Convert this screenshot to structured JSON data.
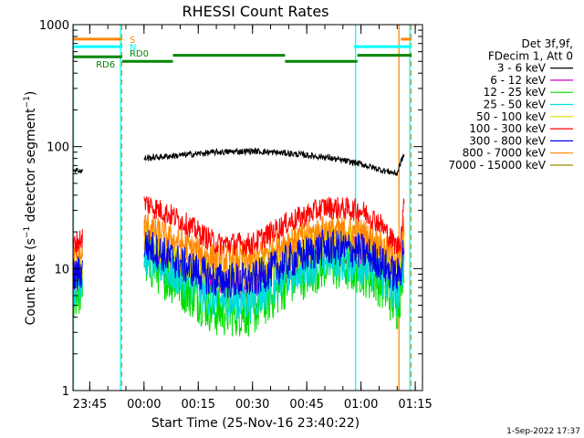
{
  "chart_data": {
    "type": "line",
    "title": "RHESSI Count Rates",
    "xlabel": "Start Time (25-Nov-16 23:40:22)",
    "ylabel": "Count Rate (s⁻¹ detector segment⁻¹)",
    "ylabel_parts": {
      "main": "Count Rate (s",
      "exp1": "−1",
      "mid": " detector segment",
      "exp2": "−1",
      "end": ")"
    },
    "date_stamp": "1-Sep-2022 17:37",
    "y_scale": "log",
    "ylim": [
      1,
      1000
    ],
    "xlim": [
      "23:40:22",
      "01:17:00"
    ],
    "x_ticks": [
      "23:45",
      "00:00",
      "00:15",
      "00:30",
      "00:45",
      "01:00",
      "01:15"
    ],
    "y_ticks": [
      "1",
      "10",
      "100",
      "1000"
    ],
    "legend_header": [
      "Det 3f,9f,",
      "FDecim 1, Att 0"
    ],
    "legend_position": "right",
    "series": [
      {
        "name": "3 - 6 keV",
        "color": "#000000",
        "x": [
          "23:40",
          "23:43",
          "23:50",
          "23:54",
          "00:00",
          "00:10",
          "00:20",
          "00:30",
          "00:40",
          "00:50",
          "01:00",
          "01:05",
          "01:10",
          "01:11",
          "01:12"
        ],
        "values": [
          65,
          63,
          null,
          null,
          80,
          85,
          90,
          92,
          88,
          82,
          72,
          65,
          60,
          75,
          87
        ]
      },
      {
        "name": "6 - 12 keV",
        "color": "#cc00cc",
        "x": [
          "23:40",
          "23:43",
          "23:50",
          "23:54",
          "00:00",
          "00:10",
          "00:20",
          "00:30",
          "00:40",
          "00:50",
          "01:00",
          "01:05",
          "01:10",
          "01:11",
          "01:12"
        ],
        "values": [
          7.5,
          8.5,
          null,
          null,
          15,
          10,
          7,
          7.5,
          11,
          15,
          14,
          11,
          7.5,
          9,
          15
        ]
      },
      {
        "name": "12 - 25 keV",
        "color": "#00dd00",
        "x": [
          "23:40",
          "23:43",
          "23:50",
          "23:54",
          "00:00",
          "00:10",
          "00:20",
          "00:30",
          "00:40",
          "00:50",
          "01:00",
          "01:05",
          "01:10",
          "01:11",
          "01:12"
        ],
        "values": [
          6,
          7,
          null,
          null,
          12,
          7.5,
          4.5,
          4.5,
          8,
          11,
          10,
          8,
          5,
          7,
          13
        ]
      },
      {
        "name": "25 - 50 keV",
        "color": "#00dddd",
        "x": [
          "23:40",
          "23:43",
          "23:50",
          "23:54",
          "00:00",
          "00:10",
          "00:20",
          "00:30",
          "00:40",
          "00:50",
          "01:00",
          "01:05",
          "01:10",
          "01:11",
          "01:12"
        ],
        "values": [
          7,
          8,
          null,
          null,
          13,
          8.5,
          5.5,
          5.5,
          9,
          12,
          11,
          9,
          6,
          8,
          14
        ]
      },
      {
        "name": "50 - 100 keV",
        "color": "#dddd00",
        "x": [
          "23:40",
          "23:43",
          "23:50",
          "23:54",
          "00:00",
          "00:10",
          "00:20",
          "00:30",
          "00:40",
          "00:50",
          "01:00",
          "01:05",
          "01:10",
          "01:11",
          "01:12"
        ],
        "values": [
          10,
          11,
          null,
          null,
          18,
          12,
          9,
          9,
          13,
          17,
          16,
          13,
          9.5,
          11,
          19
        ]
      },
      {
        "name": "100 - 300 keV",
        "color": "#ff0000",
        "x": [
          "23:40",
          "23:43",
          "23:50",
          "23:54",
          "00:00",
          "00:10",
          "00:20",
          "00:30",
          "00:40",
          "00:50",
          "01:00",
          "01:05",
          "01:10",
          "01:11",
          "01:12"
        ],
        "values": [
          15,
          18,
          null,
          null,
          35,
          25,
          16,
          16,
          24,
          32,
          30,
          24,
          15,
          18,
          35
        ]
      },
      {
        "name": "300 - 800 keV",
        "color": "#0000ee",
        "x": [
          "23:40",
          "23:43",
          "23:50",
          "23:54",
          "00:00",
          "00:10",
          "00:20",
          "00:30",
          "00:40",
          "00:50",
          "01:00",
          "01:05",
          "01:10",
          "01:11",
          "01:12"
        ],
        "values": [
          8.5,
          9.5,
          null,
          null,
          16,
          11,
          8,
          8,
          11.5,
          15,
          14,
          11.5,
          8.5,
          10,
          17
        ]
      },
      {
        "name": "800 - 7000 keV",
        "color": "#ff8800",
        "x": [
          "23:40",
          "23:43",
          "23:50",
          "23:54",
          "00:00",
          "00:10",
          "00:20",
          "00:30",
          "00:40",
          "00:50",
          "01:00",
          "01:05",
          "01:10",
          "01:11",
          "01:12"
        ],
        "values": [
          12,
          13,
          null,
          null,
          23,
          16,
          12,
          12,
          17,
          21,
          20,
          16,
          12,
          14,
          25
        ]
      },
      {
        "name": "7000 - 15000 keV",
        "color": "#998800",
        "x": [],
        "values": []
      }
    ],
    "state_bars": [
      {
        "name": "S",
        "color": "#ff8800",
        "y": 760,
        "segments": [
          [
            "23:40",
            "23:54"
          ],
          [
            "01:11",
            "01:14"
          ]
        ]
      },
      {
        "name": "N",
        "color": "#00ffff",
        "y": 660,
        "segments": [
          [
            "23:40",
            "23:54"
          ],
          [
            "00:58",
            "01:14"
          ]
        ]
      },
      {
        "name": "RD6",
        "color": "#008800",
        "y": 545,
        "segments": [
          [
            "23:40",
            "23:54"
          ]
        ]
      },
      {
        "name": "RD0",
        "color": "#008800",
        "y": 500,
        "segments": [
          [
            "23:54",
            "00:08"
          ],
          [
            "00:39",
            "00:59"
          ]
        ]
      },
      {
        "name": "",
        "color": "#008800",
        "y": 560,
        "segments": [
          [
            "00:08",
            "00:39"
          ],
          [
            "00:59",
            "01:14"
          ]
        ]
      }
    ],
    "vertical_markers": [
      {
        "x": "23:40:30",
        "color": "#00ffff",
        "style": "solid"
      },
      {
        "x": "23:53:30",
        "color": "#00ffff",
        "style": "solid"
      },
      {
        "x": "23:53:50",
        "color": "#ff8800",
        "style": "dashed"
      },
      {
        "x": "00:58:30",
        "color": "#00ffff",
        "style": "solid"
      },
      {
        "x": "01:10:30",
        "color": "#ff8800",
        "style": "solid"
      },
      {
        "x": "01:13:30",
        "color": "#00ffff",
        "style": "solid"
      },
      {
        "x": "01:13:50",
        "color": "#ff8800",
        "style": "dashed"
      }
    ]
  }
}
